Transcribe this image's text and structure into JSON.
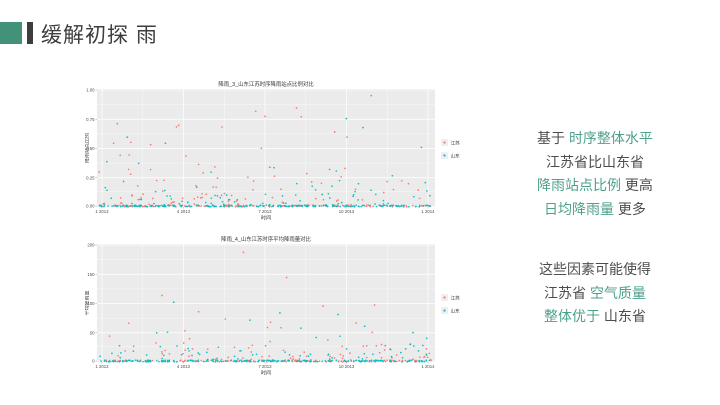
{
  "slide": {
    "title": "缓解初探 雨",
    "accent_color": "#44917A",
    "accent_bar_color": "#3D3D3D",
    "background": "#FFFFFF"
  },
  "text_colors": {
    "normal": "#4D4D4D",
    "highlight": "#4EA08C"
  },
  "insight_blocks": [
    {
      "name": "insight-1",
      "lines": [
        [
          {
            "t": "基于 ",
            "h": false
          },
          {
            "t": "时序整体水平",
            "h": true
          }
        ],
        [
          {
            "t": "江苏省比山东省",
            "h": false
          }
        ],
        [
          {
            "t": "降雨站点比例",
            "h": true
          },
          {
            "t": " 更高",
            "h": false
          }
        ],
        [
          {
            "t": "日均降雨量",
            "h": true
          },
          {
            "t": " 更多",
            "h": false
          }
        ]
      ]
    },
    {
      "name": "insight-2",
      "lines": [
        [
          {
            "t": "这些因素可能使得",
            "h": false
          }
        ],
        [
          {
            "t": "江苏省 ",
            "h": false
          },
          {
            "t": "空气质量",
            "h": true
          }
        ],
        [
          {
            "t": "整体优于",
            "h": true
          },
          {
            "t": " 山东省",
            "h": false
          }
        ]
      ]
    }
  ],
  "chart_style": {
    "panel_bg": "#EBEBEB",
    "grid_color": "#FFFFFF",
    "title_color": "#333333",
    "tick_color": "#4d4d4d",
    "legend_key_bg": "#EFEFEF"
  },
  "chart_data": [
    {
      "type": "scatter",
      "title": "降雨_3_山东江苏时序降雨站点比例对比",
      "xlabel": "时间",
      "ylabel": "降雨站点比例",
      "x_tick_labels": [
        "1 2013",
        "4 2013",
        "7 2013",
        "10 2013",
        "1 2014"
      ],
      "y_tick_labels": [
        "0.00",
        "0.25",
        "0.50",
        "0.75",
        "1.00"
      ],
      "ylim": [
        0,
        1
      ],
      "x_range_desc": "daily, Jan 2013 - Jan 2014",
      "legend_position": "right",
      "series": [
        {
          "name": "江苏",
          "color": "#F8766D",
          "seed": 11,
          "n_baseline": 150,
          "n_scatter": 95,
          "exp_scale": 0.16,
          "y_max": 1.0,
          "outliers_norm": [
            {
              "x": 0.82,
              "y": 0.985
            },
            {
              "x": 0.595,
              "y": 0.875
            },
            {
              "x": 0.5,
              "y": 0.8
            },
            {
              "x": 0.055,
              "y": 0.735
            },
            {
              "x": 0.24,
              "y": 0.72
            },
            {
              "x": 0.71,
              "y": 0.66
            }
          ]
        },
        {
          "name": "山东",
          "color": "#00BFC4",
          "seed": 22,
          "n_baseline": 210,
          "n_scatter": 80,
          "exp_scale": 0.12,
          "y_max": 0.8,
          "outliers_norm": [
            {
              "x": 0.745,
              "y": 0.78
            },
            {
              "x": 0.795,
              "y": 0.7
            },
            {
              "x": 0.085,
              "y": 0.615
            },
            {
              "x": 0.2,
              "y": 0.56
            }
          ]
        }
      ],
      "note": "dense cluster of both series at y=0 forms thick teal baseline; sparse points above"
    },
    {
      "type": "scatter",
      "title": "降雨_4_山东江苏时序平均降雨量对比",
      "xlabel": "时间",
      "ylabel": "平均降雨量",
      "x_tick_labels": [
        "1 2013",
        "4 2013",
        "7 2013",
        "10 2013",
        "1 2014"
      ],
      "y_tick_labels": [
        "0",
        "50",
        "100",
        "150",
        "200"
      ],
      "ylim": [
        0,
        200
      ],
      "x_range_desc": "daily, Jan 2013 - Jan 2014",
      "legend_position": "right",
      "series": [
        {
          "name": "江苏",
          "color": "#F8766D",
          "seed": 33,
          "n_baseline": 150,
          "n_scatter": 85,
          "exp_scale": 0.09,
          "y_max": 0.97,
          "outliers_norm": [
            {
              "x": 0.435,
              "y": 0.97
            },
            {
              "x": 0.565,
              "y": 0.745
            },
            {
              "x": 0.19,
              "y": 0.585
            },
            {
              "x": 0.675,
              "y": 0.49
            },
            {
              "x": 0.83,
              "y": 0.5
            },
            {
              "x": 0.3,
              "y": 0.44
            }
          ]
        },
        {
          "name": "山东",
          "color": "#00BFC4",
          "seed": 44,
          "n_baseline": 210,
          "n_scatter": 70,
          "exp_scale": 0.07,
          "y_max": 0.6,
          "outliers_norm": [
            {
              "x": 0.225,
              "y": 0.525
            },
            {
              "x": 0.545,
              "y": 0.43
            },
            {
              "x": 0.72,
              "y": 0.415
            },
            {
              "x": 0.8,
              "y": 0.31
            }
          ]
        }
      ],
      "note": "dense cluster of both series at y=0 forms thick teal baseline; sparse points above, one high outlier mid-year"
    }
  ]
}
